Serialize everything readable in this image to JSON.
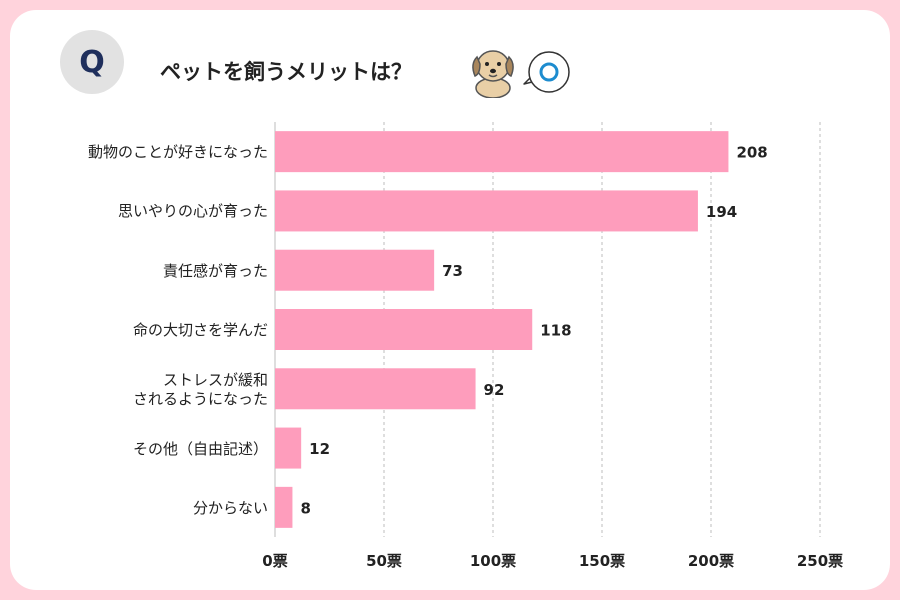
{
  "question": {
    "badge": "Q",
    "title": "ペットを飼うメリットは？"
  },
  "colors": {
    "bar": "#fe9dbc",
    "frame": "#ffd3dc",
    "grid": "#bdbdbd",
    "badge_bg": "#e2e2e2",
    "badge_text": "#1f2f5c",
    "bubble_ring": "#1d8ccf"
  },
  "chart_data": {
    "type": "bar",
    "orientation": "horizontal",
    "title": "ペットを飼うメリットは？",
    "categories": [
      [
        "動物のことが好きになった"
      ],
      [
        "思いやりの心が育った"
      ],
      [
        "責任感が育った"
      ],
      [
        "命の大切さを学んだ"
      ],
      [
        "ストレスが緩和",
        "されるようになった"
      ],
      [
        "その他（自由記述）"
      ],
      [
        "分からない"
      ]
    ],
    "values": [
      208,
      194,
      73,
      118,
      92,
      12,
      8
    ],
    "value_labels": [
      "208",
      "194",
      "73",
      "118",
      "92",
      "12",
      "8"
    ],
    "xlim": [
      0,
      250
    ],
    "x_ticks": [
      0,
      50,
      100,
      150,
      200,
      250
    ],
    "x_tick_labels": [
      "0票",
      "50票",
      "100票",
      "150票",
      "200票",
      "250票"
    ],
    "unit": "票",
    "grid": true
  }
}
